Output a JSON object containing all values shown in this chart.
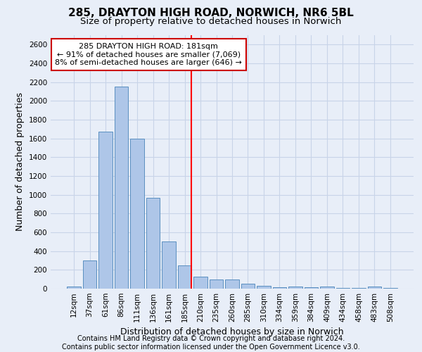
{
  "title": "285, DRAYTON HIGH ROAD, NORWICH, NR6 5BL",
  "subtitle": "Size of property relative to detached houses in Norwich",
  "xlabel": "Distribution of detached houses by size in Norwich",
  "ylabel": "Number of detached properties",
  "footer_line1": "Contains HM Land Registry data © Crown copyright and database right 2024.",
  "footer_line2": "Contains public sector information licensed under the Open Government Licence v3.0.",
  "categories": [
    "12sqm",
    "37sqm",
    "61sqm",
    "86sqm",
    "111sqm",
    "136sqm",
    "161sqm",
    "185sqm",
    "210sqm",
    "235sqm",
    "260sqm",
    "285sqm",
    "310sqm",
    "334sqm",
    "359sqm",
    "384sqm",
    "409sqm",
    "434sqm",
    "458sqm",
    "483sqm",
    "508sqm"
  ],
  "values": [
    25,
    300,
    1675,
    2150,
    1600,
    970,
    500,
    250,
    125,
    100,
    100,
    50,
    30,
    15,
    20,
    15,
    20,
    10,
    5,
    25,
    5
  ],
  "bar_color": "#aec6e8",
  "bar_edge_color": "#5a8fc0",
  "highlight_index": 7,
  "red_line_index": 7,
  "annotation_title": "285 DRAYTON HIGH ROAD: 181sqm",
  "annotation_line1": "← 91% of detached houses are smaller (7,069)",
  "annotation_line2": "8% of semi-detached houses are larger (646) →",
  "annotation_box_facecolor": "#ffffff",
  "annotation_box_edgecolor": "#cc0000",
  "ylim": [
    0,
    2700
  ],
  "yticks": [
    0,
    200,
    400,
    600,
    800,
    1000,
    1200,
    1400,
    1600,
    1800,
    2000,
    2200,
    2400,
    2600
  ],
  "grid_color": "#c8d4e8",
  "bg_color": "#e8eef8",
  "title_fontsize": 11,
  "subtitle_fontsize": 9.5,
  "ylabel_fontsize": 9,
  "xlabel_fontsize": 9,
  "tick_fontsize": 7.5,
  "annotation_fontsize": 8,
  "footer_fontsize": 7
}
